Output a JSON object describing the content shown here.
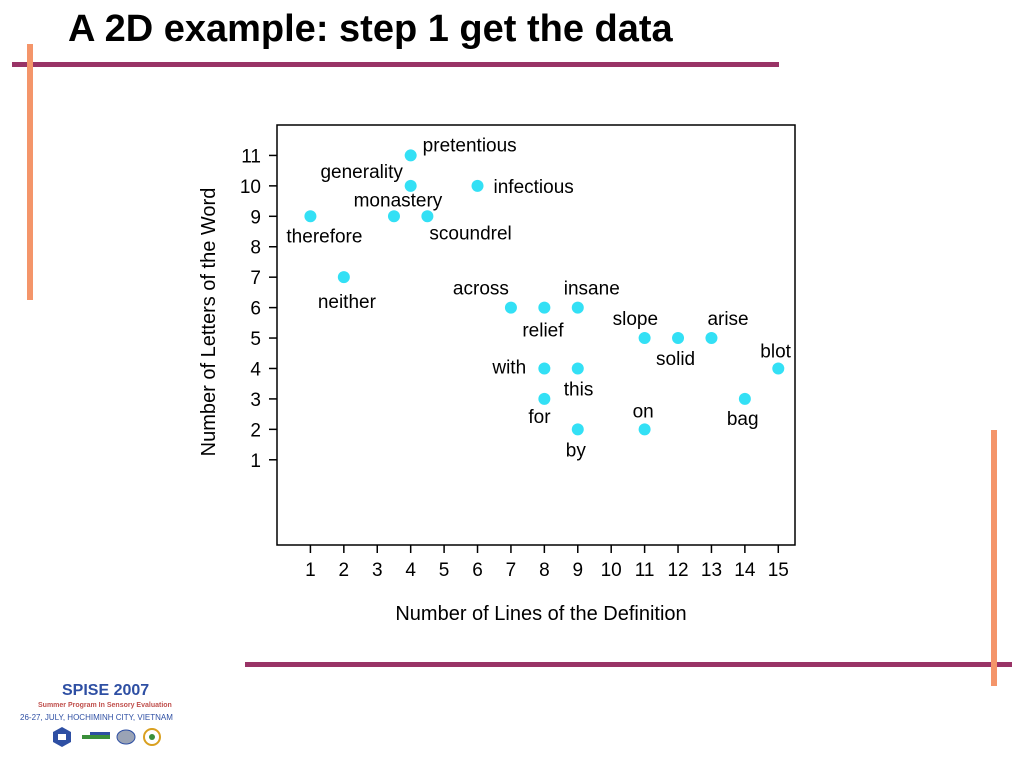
{
  "slide": {
    "title": "A 2D example: step 1 get the data"
  },
  "footer": {
    "event": "SPISE 2007",
    "subtitle": "Summer Program In Sensory Evaluation",
    "date_location": "26-27, JULY, HOCHIMINH CITY, VIETNAM"
  },
  "colors": {
    "rule": "#993366",
    "accent_bar": "#f4956a",
    "point": "#33e0f5"
  },
  "chart_data": {
    "type": "scatter",
    "xlabel": "Number of Lines of the Definition",
    "ylabel": "Number of Letters of the Word",
    "xlim": [
      0,
      15.5
    ],
    "ylim": [
      -1.8,
      12
    ],
    "x_ticks": [
      1,
      2,
      3,
      4,
      5,
      6,
      7,
      8,
      9,
      10,
      11,
      12,
      13,
      14,
      15
    ],
    "y_ticks": [
      1,
      2,
      3,
      4,
      5,
      6,
      7,
      8,
      9,
      10,
      11
    ],
    "grid": false,
    "points": [
      {
        "label": "pretentious",
        "x": 4,
        "y": 11
      },
      {
        "label": "generality",
        "x": 4,
        "y": 10
      },
      {
        "label": "infectious",
        "x": 6,
        "y": 10
      },
      {
        "label": "monastery",
        "x": 3.5,
        "y": 9
      },
      {
        "label": "scoundrel",
        "x": 4.5,
        "y": 9
      },
      {
        "label": "therefore",
        "x": 1,
        "y": 9
      },
      {
        "label": "neither",
        "x": 2,
        "y": 7
      },
      {
        "label": "across",
        "x": 7,
        "y": 6
      },
      {
        "label": "relief",
        "x": 8,
        "y": 6
      },
      {
        "label": "insane",
        "x": 9,
        "y": 6
      },
      {
        "label": "slope",
        "x": 11,
        "y": 5
      },
      {
        "label": "solid",
        "x": 12,
        "y": 5
      },
      {
        "label": "arise",
        "x": 13,
        "y": 5
      },
      {
        "label": "blot",
        "x": 15,
        "y": 4
      },
      {
        "label": "with",
        "x": 8,
        "y": 4
      },
      {
        "label": "this",
        "x": 9,
        "y": 4
      },
      {
        "label": "for",
        "x": 8,
        "y": 3
      },
      {
        "label": "bag",
        "x": 14,
        "y": 3
      },
      {
        "label": "on",
        "x": 11,
        "y": 2
      },
      {
        "label": "by",
        "x": 9,
        "y": 2
      }
    ]
  }
}
